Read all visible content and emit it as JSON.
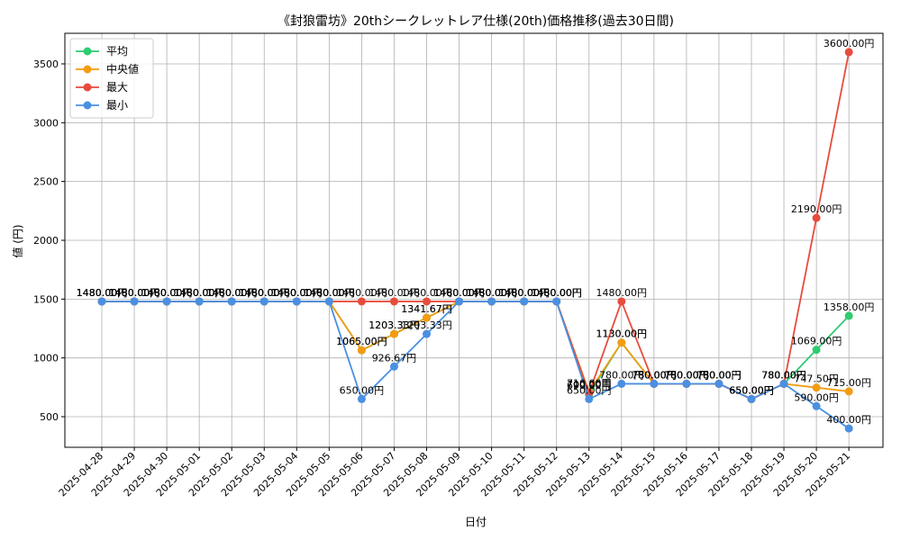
{
  "chart_data": {
    "type": "line",
    "title": "《封狼雷坊》20thシークレットレア仕様(20th)価格推移(過去30日間)",
    "xlabel": "日付",
    "ylabel": "値 (円)",
    "ylim": [
      240,
      3760
    ],
    "yticks": [
      500,
      1000,
      1500,
      2000,
      2500,
      3000,
      3500
    ],
    "grid": true,
    "legend_position": "top-left",
    "value_suffix": "円",
    "categories": [
      "2025-04-28",
      "2025-04-29",
      "2025-04-30",
      "2025-05-01",
      "2025-05-02",
      "2025-05-03",
      "2025-05-04",
      "2025-05-05",
      "2025-05-06",
      "2025-05-07",
      "2025-05-08",
      "2025-05-09",
      "2025-05-10",
      "2025-05-11",
      "2025-05-12",
      "2025-05-13",
      "2025-05-14",
      "2025-05-15",
      "2025-05-16",
      "2025-05-17",
      "2025-05-18",
      "2025-05-19",
      "2025-05-20",
      "2025-05-21"
    ],
    "series": [
      {
        "name": "平均",
        "color": "#2ecc71",
        "values": [
          1480,
          1480,
          1480,
          1480,
          1480,
          1480,
          1480,
          1480,
          1065,
          1203.33,
          1341.67,
          1480,
          1480,
          1480,
          1480,
          690,
          1130,
          780,
          780,
          780,
          650,
          780,
          1069,
          1358
        ]
      },
      {
        "name": "中央値",
        "color": "#f39c12",
        "values": [
          1480,
          1480,
          1480,
          1480,
          1480,
          1480,
          1480,
          1480,
          1065,
          1203.33,
          1341.67,
          1480,
          1480,
          1480,
          1480,
          710,
          1130,
          780,
          780,
          780,
          650,
          780,
          747.5,
          715
        ]
      },
      {
        "name": "最大",
        "color": "#e74c3c",
        "values": [
          1480,
          1480,
          1480,
          1480,
          1480,
          1480,
          1480,
          1480,
          1480,
          1480,
          1480,
          1480,
          1480,
          1480,
          1480,
          700,
          1480,
          780,
          780,
          780,
          650,
          780,
          2190,
          3600
        ]
      },
      {
        "name": "最小",
        "color": "#4a90e2",
        "values": [
          1480,
          1480,
          1480,
          1480,
          1480,
          1480,
          1480,
          1480,
          650,
          926.67,
          1203.33,
          1480,
          1480,
          1480,
          1480,
          650,
          780,
          780,
          780,
          780,
          650,
          780,
          590,
          400
        ]
      }
    ]
  }
}
